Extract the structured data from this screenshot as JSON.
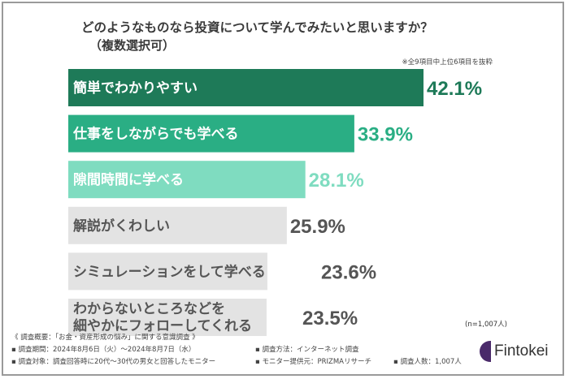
{
  "title": "どのようなものなら投資について学んでみたいと思いますか？",
  "subtitle": "（複数選択可）",
  "note": "※全9項目中上位6項目を抜粋",
  "sample_size": "(n=1,007人)",
  "footer": {
    "survey_overview": "《 調査概要：「お金・資産形成の悩み」に関する意識調査 》",
    "period": "▪ 調査期間：2024年8月6日（火）〜2024年8月7日（水）",
    "method": "▪ 調査方法：インターネット調査",
    "target": "▪ 調査対象：調査回答時に20代〜30代の男女と回答したモニター",
    "provider": "▪ モニター提供元：PRIZMAリサーチ",
    "count": "▪ 調査人数：1,007人"
  },
  "logo": {
    "text": "Fintokei"
  },
  "chart_data": {
    "type": "bar",
    "orientation": "horizontal",
    "categories": [
      [
        "簡単でわかりやすい"
      ],
      [
        "仕事をしながらでも学べる"
      ],
      [
        "隙間時間に学べる"
      ],
      [
        "解説がくわしい"
      ],
      [
        "シミュレーションをして学べる"
      ],
      [
        "わからないところなどを",
        "細やかにフォローしてくれる"
      ]
    ],
    "values": [
      42.1,
      33.9,
      28.1,
      25.9,
      23.6,
      23.5
    ],
    "value_labels": [
      "42.1%",
      "33.9%",
      "28.1%",
      "25.9%",
      "23.6%",
      "23.5%"
    ],
    "unit": "%",
    "colors": {
      "bars": [
        "#1e7a58",
        "#2aae84",
        "#7fdcc0",
        "#e3e3e3",
        "#e3e3e3",
        "#e3e3e3"
      ],
      "labels": [
        "#ffffff",
        "#ffffff",
        "#ffffff",
        "#555555",
        "#555555",
        "#555555"
      ],
      "values": [
        "#1e7a58",
        "#2aae84",
        "#7fdcc0",
        "#555555",
        "#555555",
        "#555555"
      ]
    },
    "grid": false,
    "legend": "none"
  }
}
